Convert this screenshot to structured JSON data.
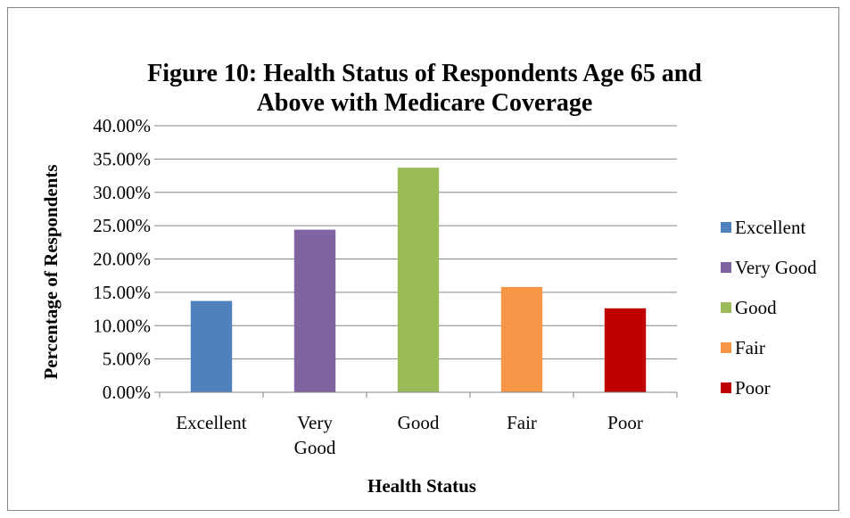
{
  "chart_data": {
    "type": "bar",
    "title_lines": [
      "Figure 10: Health Status of Respondents Age 65 and",
      "Above with Medicare Coverage"
    ],
    "xlabel": "Health Status",
    "ylabel": "Percentage of Respondents",
    "categories": [
      "Excellent",
      "Very Good",
      "Good",
      "Fair",
      "Poor"
    ],
    "category_lines": [
      [
        "Excellent"
      ],
      [
        "Very",
        "Good"
      ],
      [
        "Good"
      ],
      [
        "Fair"
      ],
      [
        "Poor"
      ]
    ],
    "values": [
      13.7,
      24.4,
      33.7,
      15.8,
      12.6
    ],
    "colors": [
      "#4F81BD",
      "#8064A2",
      "#9BBB59",
      "#F79646",
      "#C00000"
    ],
    "ylim": [
      0,
      40
    ],
    "yticks": [
      0,
      5,
      10,
      15,
      20,
      25,
      30,
      35,
      40
    ],
    "ytick_labels": [
      "0.00%",
      "5.00%",
      "10.00%",
      "15.00%",
      "20.00%",
      "25.00%",
      "30.00%",
      "35.00%",
      "40.00%"
    ],
    "grid": true,
    "legend": {
      "position": "right",
      "entries": [
        "Excellent",
        "Very Good",
        "Good",
        "Fair",
        "Poor"
      ]
    }
  }
}
